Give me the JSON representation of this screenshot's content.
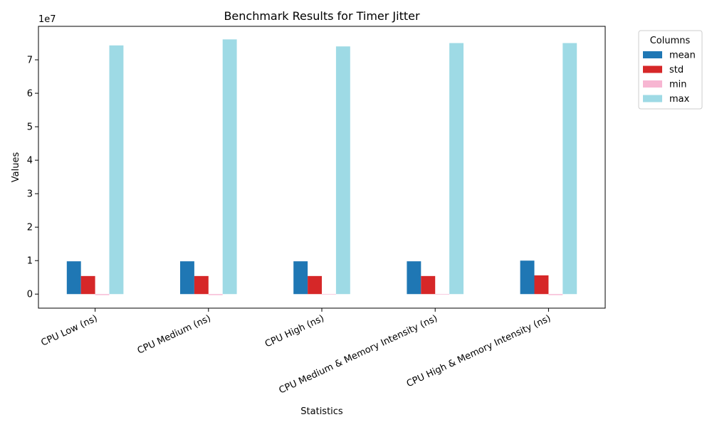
{
  "chart_data": {
    "type": "bar",
    "title": "Benchmark Results for Timer Jitter",
    "xlabel": "Statistics",
    "ylabel": "Values",
    "scale_label": "1e7",
    "categories": [
      "CPU Low (ns)",
      "CPU Medium (ns)",
      "CPU High (ns)",
      "CPU Medium & Memory Intensity (ns)",
      "CPU High & Memory Intensity (ns)"
    ],
    "series": [
      {
        "name": "mean",
        "color": "#1f77b4",
        "values": [
          9.8,
          9.8,
          9.8,
          9.8,
          10.0
        ]
      },
      {
        "name": "std",
        "color": "#d62728",
        "values": [
          5.4,
          5.4,
          5.4,
          5.4,
          5.6
        ]
      },
      {
        "name": "min",
        "color": "#f7b6d2",
        "values": [
          -0.3,
          -0.3,
          -0.15,
          -0.15,
          -0.3
        ]
      },
      {
        "name": "max",
        "color": "#9edae5",
        "values": [
          74.3,
          76.1,
          74.0,
          75.0,
          75.0
        ]
      }
    ],
    "value_unit_multiplier": 1000000,
    "ylim": [
      -4.2,
      80.0
    ],
    "yticks": [
      0,
      1,
      2,
      3,
      4,
      5,
      6,
      7
    ],
    "ytick_labels": [
      "0",
      "1",
      "2",
      "3",
      "4",
      "5",
      "6",
      "7"
    ],
    "legend": {
      "title": "Columns",
      "placement": "outside-top-right"
    },
    "grid": false
  }
}
